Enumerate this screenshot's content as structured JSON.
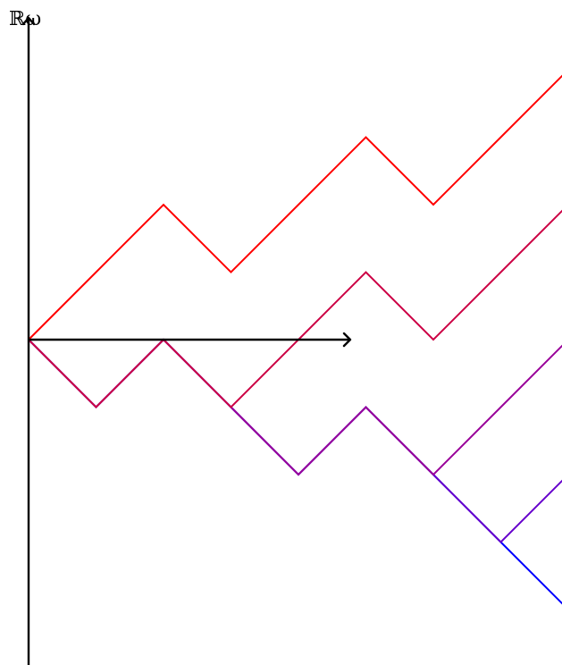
{
  "diagram": {
    "y_axis_label": "ℝω",
    "paths": [
      {
        "color": "#ff0000",
        "steps": [
          1,
          1,
          -1,
          1,
          1,
          -1,
          1,
          1
        ]
      },
      {
        "color": "#cc0044",
        "steps": [
          -1,
          1,
          -1,
          1,
          1,
          -1,
          1,
          1
        ]
      },
      {
        "color": "#990099",
        "steps": [
          -1,
          1,
          -1,
          -1,
          1,
          -1,
          1,
          1
        ]
      },
      {
        "color": "#6600cc",
        "steps": [
          -1,
          1,
          -1,
          -1,
          1,
          -1,
          -1,
          1
        ]
      },
      {
        "color": "#0000ff",
        "steps": [
          -1,
          1,
          -1,
          -1,
          1,
          -1,
          -1,
          -1
        ]
      }
    ]
  }
}
